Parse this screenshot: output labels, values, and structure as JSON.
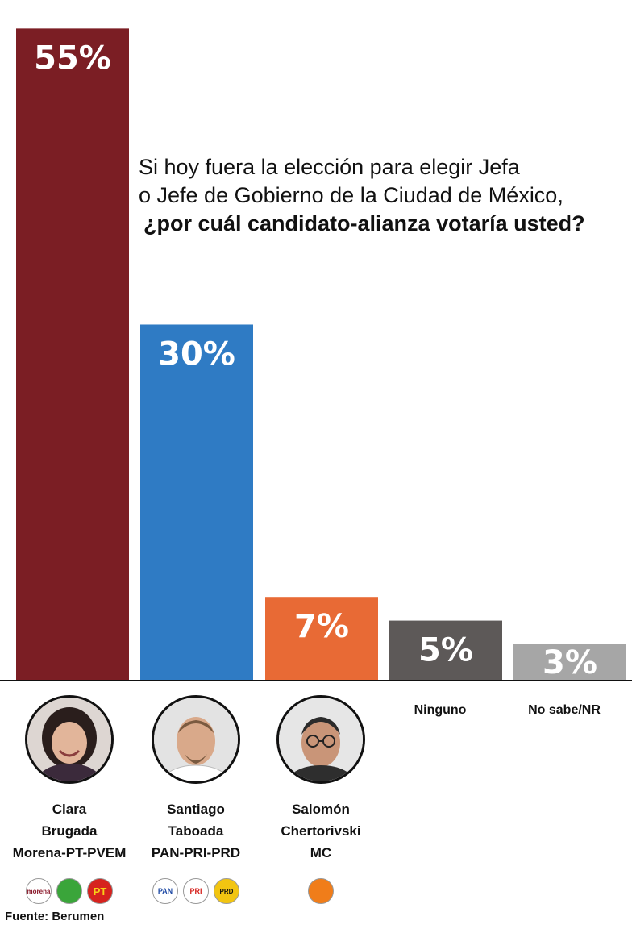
{
  "question": {
    "line1": "Si hoy fuera la elección para elegir Jefa",
    "line2": "o Jefe de Gobierno de la Ciudad de México,",
    "line3": "¿por cuál candidato-alianza votaría usted?"
  },
  "chart_data": {
    "type": "bar",
    "categories": [
      "Clara Brugada Morena-PT-PVEM",
      "Santiago Taboada PAN-PRI-PRD",
      "Salomón Chertorivski MC",
      "Ninguno",
      "No sabe/NR"
    ],
    "values": [
      55,
      30,
      7,
      5,
      3
    ],
    "labels": [
      "55%",
      "30%",
      "7%",
      "5%",
      "3%"
    ],
    "colors": [
      "#7b1e24",
      "#2f7bc4",
      "#e86a35",
      "#5d5958",
      "#a6a6a6"
    ],
    "ylim": [
      0,
      57
    ],
    "grid": false,
    "legend": "none"
  },
  "candidates": [
    {
      "first": "Clara",
      "last": "Brugada",
      "alliance": "Morena-PT-PVEM",
      "logos": [
        {
          "icon": "morena-logo",
          "text": "morena",
          "color": "#8b1a2b"
        },
        {
          "icon": "pvem-logo",
          "text": "",
          "color": "#3aa53a"
        },
        {
          "icon": "pt-logo",
          "text": "PT",
          "color": "#d6221e"
        }
      ]
    },
    {
      "first": "Santiago",
      "last": "Taboada",
      "alliance": "PAN-PRI-PRD",
      "logos": [
        {
          "icon": "pan-logo",
          "text": "PAN",
          "color": "#1f4aa5"
        },
        {
          "icon": "pri-logo",
          "text": "PRI",
          "color": "#1e8a3c"
        },
        {
          "icon": "prd-logo",
          "text": "PRD",
          "color": "#f2c511"
        }
      ]
    },
    {
      "first": "Salomón",
      "last": "Chertorivski",
      "alliance": "MC",
      "logos": [
        {
          "icon": "mc-logo",
          "text": "",
          "color": "#f07d1a"
        }
      ]
    }
  ],
  "others": [
    "Ninguno",
    "No sabe/NR"
  ],
  "source": "Fuente: Berumen"
}
